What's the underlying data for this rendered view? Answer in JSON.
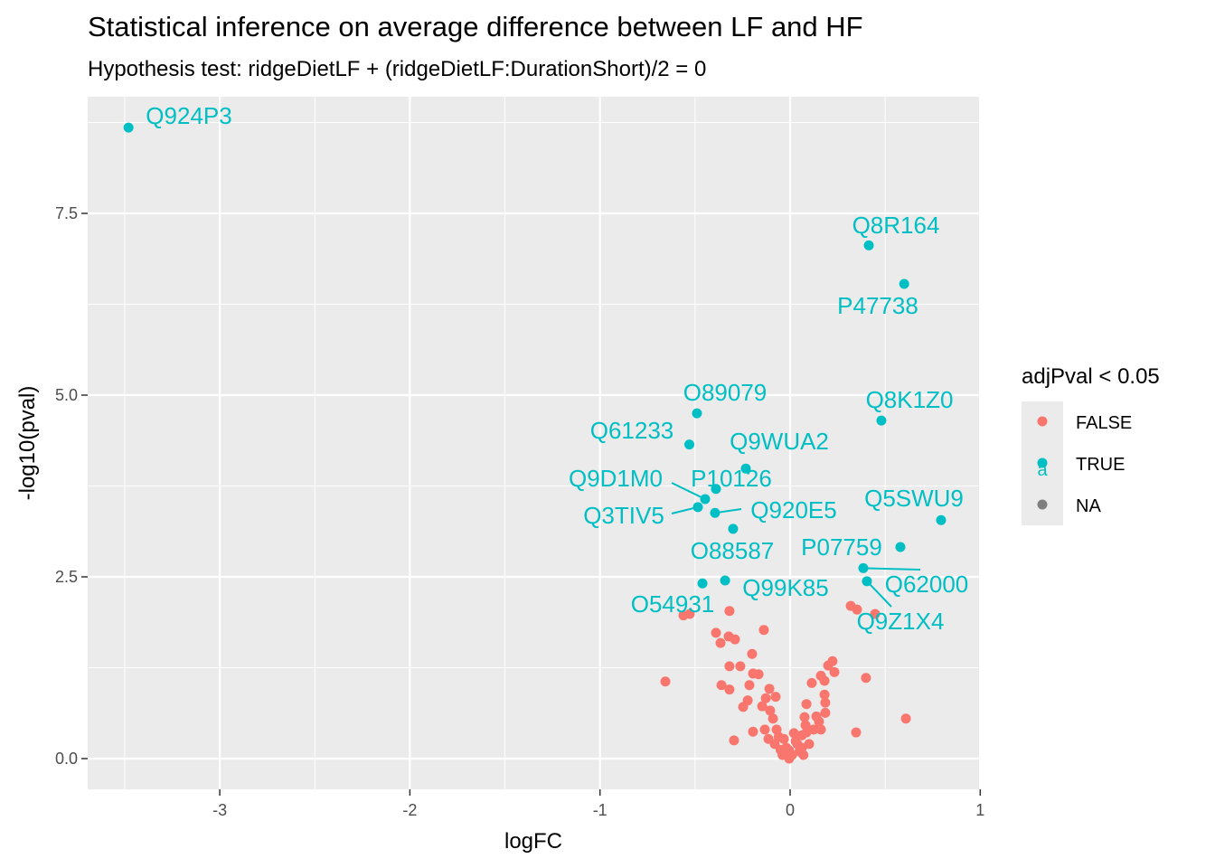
{
  "chart_data": {
    "type": "scatter",
    "title": "Statistical inference on average difference between LF and HF",
    "subtitle": "Hypothesis test: ridgeDietLF + (ridgeDietLF:DurationShort)/2 = 0",
    "xlabel": "logFC",
    "ylabel": "-log10(pval)",
    "xlim": [
      -3.67,
      1.0
    ],
    "ylim": [
      -0.43,
      9.1
    ],
    "xticks": [
      -3,
      -2,
      -1,
      0,
      1
    ],
    "xtick_labels": [
      "-3",
      "-2",
      "-1",
      "0",
      "1"
    ],
    "yticks": [
      0,
      2.5,
      5,
      7.5
    ],
    "ytick_labels": [
      "0.0",
      "2.5",
      "5.0",
      "7.5"
    ],
    "grid": true,
    "legend": {
      "title": "adjPval < 0.05",
      "placement": "right",
      "entries": [
        {
          "label": "FALSE",
          "color": "#F8766D"
        },
        {
          "label": "TRUE",
          "color": "#00BFC4"
        },
        {
          "label": "NA",
          "color": "#7F7F7F"
        }
      ],
      "key_glyph_text": "a"
    },
    "series": [
      {
        "name": "TRUE",
        "color": "#00BFC4",
        "points": [
          {
            "x": -3.48,
            "y": 8.68,
            "label": "Q924P3"
          },
          {
            "x": 0.414,
            "y": 7.06,
            "label": "Q8R164"
          },
          {
            "x": 0.6,
            "y": 6.53,
            "label": "P47738"
          },
          {
            "x": -0.49,
            "y": 4.75,
            "label": "O89079"
          },
          {
            "x": 0.48,
            "y": 4.65,
            "label": "Q8K1Z0"
          },
          {
            "x": -0.53,
            "y": 4.32,
            "label": "Q61233"
          },
          {
            "x": -0.233,
            "y": 3.99,
            "label": "Q9WUA2"
          },
          {
            "x": -0.39,
            "y": 3.71,
            "label": "P10126"
          },
          {
            "x": -0.447,
            "y": 3.57,
            "label": "Q9D1M0"
          },
          {
            "x": -0.485,
            "y": 3.46,
            "label": "Q3TIV5"
          },
          {
            "x": -0.395,
            "y": 3.38,
            "label": "Q920E5"
          },
          {
            "x": -0.3,
            "y": 3.16,
            "label": "O88587"
          },
          {
            "x": 0.794,
            "y": 3.28,
            "label": "Q5SWU9"
          },
          {
            "x": 0.58,
            "y": 2.91,
            "label": "P07759"
          },
          {
            "x": 0.385,
            "y": 2.62,
            "label": "Q62000"
          },
          {
            "x": 0.404,
            "y": 2.44,
            "label": "Q9Z1X4"
          },
          {
            "x": -0.461,
            "y": 2.41,
            "label": "O54931"
          },
          {
            "x": -0.342,
            "y": 2.45,
            "label": "Q99K85"
          }
        ]
      },
      {
        "name": "FALSE",
        "color": "#F8766D",
        "points": [
          {
            "x": -0.561,
            "y": 1.97
          },
          {
            "x": -0.528,
            "y": 1.99
          },
          {
            "x": -0.319,
            "y": 2.03
          },
          {
            "x": -0.39,
            "y": 1.73
          },
          {
            "x": -0.366,
            "y": 1.59
          },
          {
            "x": -0.323,
            "y": 1.68
          },
          {
            "x": -0.29,
            "y": 1.64
          },
          {
            "x": -0.138,
            "y": 1.77
          },
          {
            "x": -0.2,
            "y": 1.44
          },
          {
            "x": -0.319,
            "y": 1.27
          },
          {
            "x": -0.262,
            "y": 1.27
          },
          {
            "x": -0.195,
            "y": 1.17
          },
          {
            "x": -0.166,
            "y": 1.16
          },
          {
            "x": -0.656,
            "y": 1.06
          },
          {
            "x": -0.361,
            "y": 1.01
          },
          {
            "x": -0.319,
            "y": 0.95
          },
          {
            "x": -0.214,
            "y": 1.01
          },
          {
            "x": -0.109,
            "y": 0.96
          },
          {
            "x": -0.076,
            "y": 0.85
          },
          {
            "x": -0.128,
            "y": 0.83
          },
          {
            "x": -0.223,
            "y": 0.8
          },
          {
            "x": -0.247,
            "y": 0.71
          },
          {
            "x": -0.147,
            "y": 0.72
          },
          {
            "x": -0.105,
            "y": 0.66
          },
          {
            "x": -0.09,
            "y": 0.55
          },
          {
            "x": -0.295,
            "y": 0.25
          },
          {
            "x": -0.195,
            "y": 0.37
          },
          {
            "x": -0.133,
            "y": 0.4
          },
          {
            "x": -0.071,
            "y": 0.4
          },
          {
            "x": -0.114,
            "y": 0.27
          },
          {
            "x": -0.081,
            "y": 0.2
          },
          {
            "x": -0.033,
            "y": 0.27
          },
          {
            "x": -0.005,
            "y": 0.11
          },
          {
            "x": -0.005,
            "y": 0.0
          },
          {
            "x": 0.029,
            "y": 0.24
          },
          {
            "x": 0.062,
            "y": 0.15
          },
          {
            "x": 0.086,
            "y": 0.75
          },
          {
            "x": 0.076,
            "y": 0.57
          },
          {
            "x": 0.081,
            "y": 0.46
          },
          {
            "x": 0.086,
            "y": 0.36
          },
          {
            "x": 0.114,
            "y": 1.04
          },
          {
            "x": 0.162,
            "y": 1.14
          },
          {
            "x": 0.181,
            "y": 1.07
          },
          {
            "x": 0.2,
            "y": 1.28
          },
          {
            "x": 0.223,
            "y": 1.34
          },
          {
            "x": 0.233,
            "y": 1.19
          },
          {
            "x": 0.181,
            "y": 0.88
          },
          {
            "x": 0.185,
            "y": 0.77
          },
          {
            "x": 0.185,
            "y": 0.63
          },
          {
            "x": 0.138,
            "y": 0.58
          },
          {
            "x": 0.152,
            "y": 0.51
          },
          {
            "x": 0.162,
            "y": 0.4
          },
          {
            "x": 0.124,
            "y": 0.4
          },
          {
            "x": 0.347,
            "y": 0.36
          },
          {
            "x": 0.609,
            "y": 0.55
          },
          {
            "x": 0.399,
            "y": 1.11
          },
          {
            "x": 0.319,
            "y": 2.1
          },
          {
            "x": 0.352,
            "y": 2.05
          },
          {
            "x": 0.447,
            "y": 1.99
          },
          {
            "x": 0.062,
            "y": 0.32
          },
          {
            "x": 0.038,
            "y": 0.2
          },
          {
            "x": 0.01,
            "y": 0.05
          },
          {
            "x": -0.02,
            "y": 0.15
          },
          {
            "x": 0.05,
            "y": 0.1
          },
          {
            "x": -0.05,
            "y": 0.12
          },
          {
            "x": 0.1,
            "y": 0.2
          },
          {
            "x": -0.06,
            "y": 0.3
          },
          {
            "x": 0.02,
            "y": 0.35
          },
          {
            "x": -0.04,
            "y": 0.05
          },
          {
            "x": 0.07,
            "y": 0.05
          }
        ]
      }
    ]
  }
}
